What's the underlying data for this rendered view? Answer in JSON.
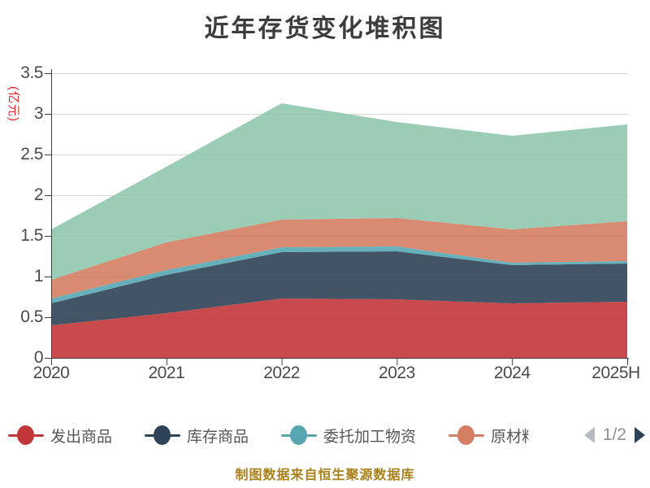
{
  "title": "近年存货变化堆积图",
  "y_axis": {
    "unit": "(亿元)",
    "ticks": [
      "3.5",
      "3",
      "2.5",
      "2",
      "1.5",
      "1",
      "0.5",
      "0"
    ],
    "min": 0,
    "max": 3.5
  },
  "chart_data": {
    "type": "area",
    "stacked": true,
    "title": "近年存货变化堆积图",
    "ylabel": "(亿元)",
    "ylim": [
      0,
      3.5
    ],
    "grid": true,
    "legend_position": "bottom",
    "categories": [
      "2020",
      "2021",
      "2022",
      "2023",
      "2024",
      "2025H"
    ],
    "series": [
      {
        "name": "发出商品",
        "color": "#c23639",
        "values": [
          0.4,
          0.55,
          0.73,
          0.72,
          0.67,
          0.69
        ]
      },
      {
        "name": "库存商品",
        "color": "#2e4355",
        "values": [
          0.27,
          0.47,
          0.57,
          0.59,
          0.47,
          0.47
        ]
      },
      {
        "name": "委托加工物资",
        "color": "#57a6b2",
        "values": [
          0.06,
          0.06,
          0.06,
          0.06,
          0.03,
          0.03
        ]
      },
      {
        "name": "原材料",
        "color": "#d47e62",
        "values": [
          0.23,
          0.34,
          0.34,
          0.35,
          0.41,
          0.49
        ]
      },
      {
        "name": "",
        "color": "#90c7ae",
        "values": [
          0.62,
          0.93,
          1.43,
          1.18,
          1.15,
          1.19
        ]
      }
    ],
    "stack_totals": [
      1.58,
      2.35,
      3.13,
      2.9,
      2.73,
      2.87
    ]
  },
  "legend": {
    "items": [
      {
        "label": "发出商品",
        "color": "#c23639",
        "clipped": false
      },
      {
        "label": "库存商品",
        "color": "#2e4355",
        "clipped": false
      },
      {
        "label": "委托加工物资",
        "color": "#57a6b2",
        "clipped": false
      },
      {
        "label": "原材料",
        "color": "#d47e62",
        "clipped": true
      }
    ],
    "pagination": {
      "label": "1/2"
    }
  },
  "footer": {
    "source": "制图数据来自恒生聚源数据库"
  },
  "colors": {
    "grid": "#d6d6d6",
    "axis": "#3f3f3f",
    "tick_label": "#4a4a4a",
    "title": "#3c3c3c",
    "unit_label": "#e62222",
    "footer": "#a9811c",
    "pager_prev_arrow": "#b9bcbf",
    "pager_next_arrow": "#2e4355"
  }
}
